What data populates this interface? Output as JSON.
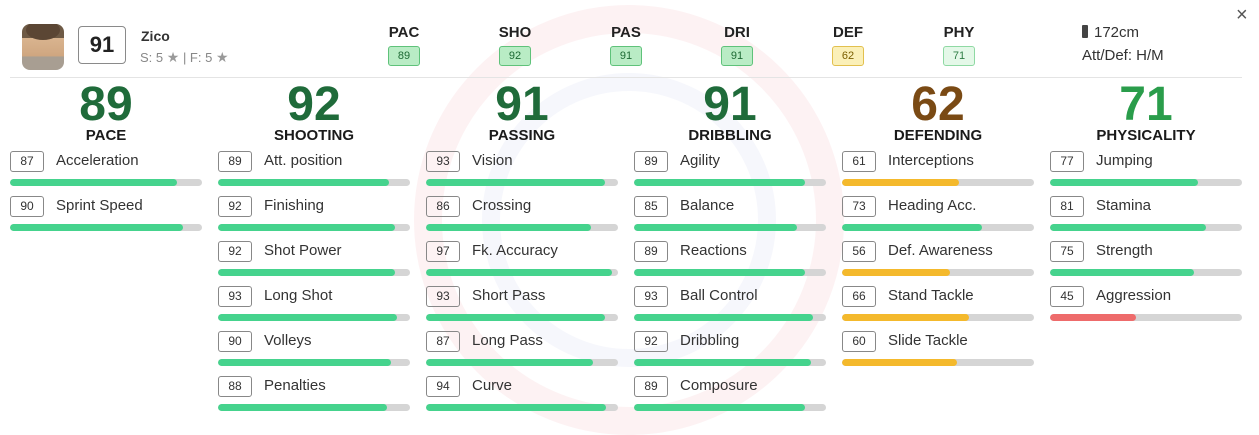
{
  "player": {
    "name": "Zico",
    "overall": "91",
    "skill_prefix": "S: 5",
    "weak_prefix": "| F: 5",
    "star_icon": "★",
    "height": "172cm",
    "workrate": "Att/Def: H/M"
  },
  "header_stats": [
    {
      "abbr": "PAC",
      "value": "89",
      "style": "v-green"
    },
    {
      "abbr": "SHO",
      "value": "92",
      "style": "v-green"
    },
    {
      "abbr": "PAS",
      "value": "91",
      "style": "v-green"
    },
    {
      "abbr": "DRI",
      "value": "91",
      "style": "v-green"
    },
    {
      "abbr": "DEF",
      "value": "62",
      "style": "v-yellow"
    },
    {
      "abbr": "PHY",
      "value": "71",
      "style": "v-light"
    }
  ],
  "close_glyph": "×",
  "colors": {
    "elite": "#1f6b3a",
    "good": "#2a9d4b",
    "average": "#7a4a14",
    "bar_green": "#45d38d",
    "bar_yellow": "#f4b92c",
    "bar_red": "#ee6b6b",
    "track": "#d5d5d5"
  },
  "categories": [
    {
      "value": "89",
      "name": "PACE",
      "color": "elite",
      "attrs": [
        {
          "value": "87",
          "name": "Acceleration",
          "pct": 87
        },
        {
          "value": "90",
          "name": "Sprint Speed",
          "pct": 90
        }
      ]
    },
    {
      "value": "92",
      "name": "SHOOTING",
      "color": "elite",
      "attrs": [
        {
          "value": "89",
          "name": "Att. position",
          "pct": 89
        },
        {
          "value": "92",
          "name": "Finishing",
          "pct": 92
        },
        {
          "value": "92",
          "name": "Shot Power",
          "pct": 92
        },
        {
          "value": "93",
          "name": "Long Shot",
          "pct": 93
        },
        {
          "value": "90",
          "name": "Volleys",
          "pct": 90
        },
        {
          "value": "88",
          "name": "Penalties",
          "pct": 88
        }
      ]
    },
    {
      "value": "91",
      "name": "PASSING",
      "color": "elite",
      "attrs": [
        {
          "value": "93",
          "name": "Vision",
          "pct": 93
        },
        {
          "value": "86",
          "name": "Crossing",
          "pct": 86
        },
        {
          "value": "97",
          "name": "Fk. Accuracy",
          "pct": 97
        },
        {
          "value": "93",
          "name": "Short Pass",
          "pct": 93
        },
        {
          "value": "87",
          "name": "Long Pass",
          "pct": 87
        },
        {
          "value": "94",
          "name": "Curve",
          "pct": 94
        }
      ]
    },
    {
      "value": "91",
      "name": "DRIBBLING",
      "color": "elite",
      "attrs": [
        {
          "value": "89",
          "name": "Agility",
          "pct": 89
        },
        {
          "value": "85",
          "name": "Balance",
          "pct": 85
        },
        {
          "value": "89",
          "name": "Reactions",
          "pct": 89
        },
        {
          "value": "93",
          "name": "Ball Control",
          "pct": 93
        },
        {
          "value": "92",
          "name": "Dribbling",
          "pct": 92
        },
        {
          "value": "89",
          "name": "Composure",
          "pct": 89
        }
      ]
    },
    {
      "value": "62",
      "name": "DEFENDING",
      "color": "average",
      "attrs": [
        {
          "value": "61",
          "name": "Interceptions",
          "pct": 61
        },
        {
          "value": "73",
          "name": "Heading Acc.",
          "pct": 73
        },
        {
          "value": "56",
          "name": "Def. Awareness",
          "pct": 56
        },
        {
          "value": "66",
          "name": "Stand Tackle",
          "pct": 66
        },
        {
          "value": "60",
          "name": "Slide Tackle",
          "pct": 60
        }
      ]
    },
    {
      "value": "71",
      "name": "PHYSICALITY",
      "color": "good",
      "attrs": [
        {
          "value": "77",
          "name": "Jumping",
          "pct": 77
        },
        {
          "value": "81",
          "name": "Stamina",
          "pct": 81
        },
        {
          "value": "75",
          "name": "Strength",
          "pct": 75
        },
        {
          "value": "45",
          "name": "Aggression",
          "pct": 45
        }
      ]
    }
  ]
}
